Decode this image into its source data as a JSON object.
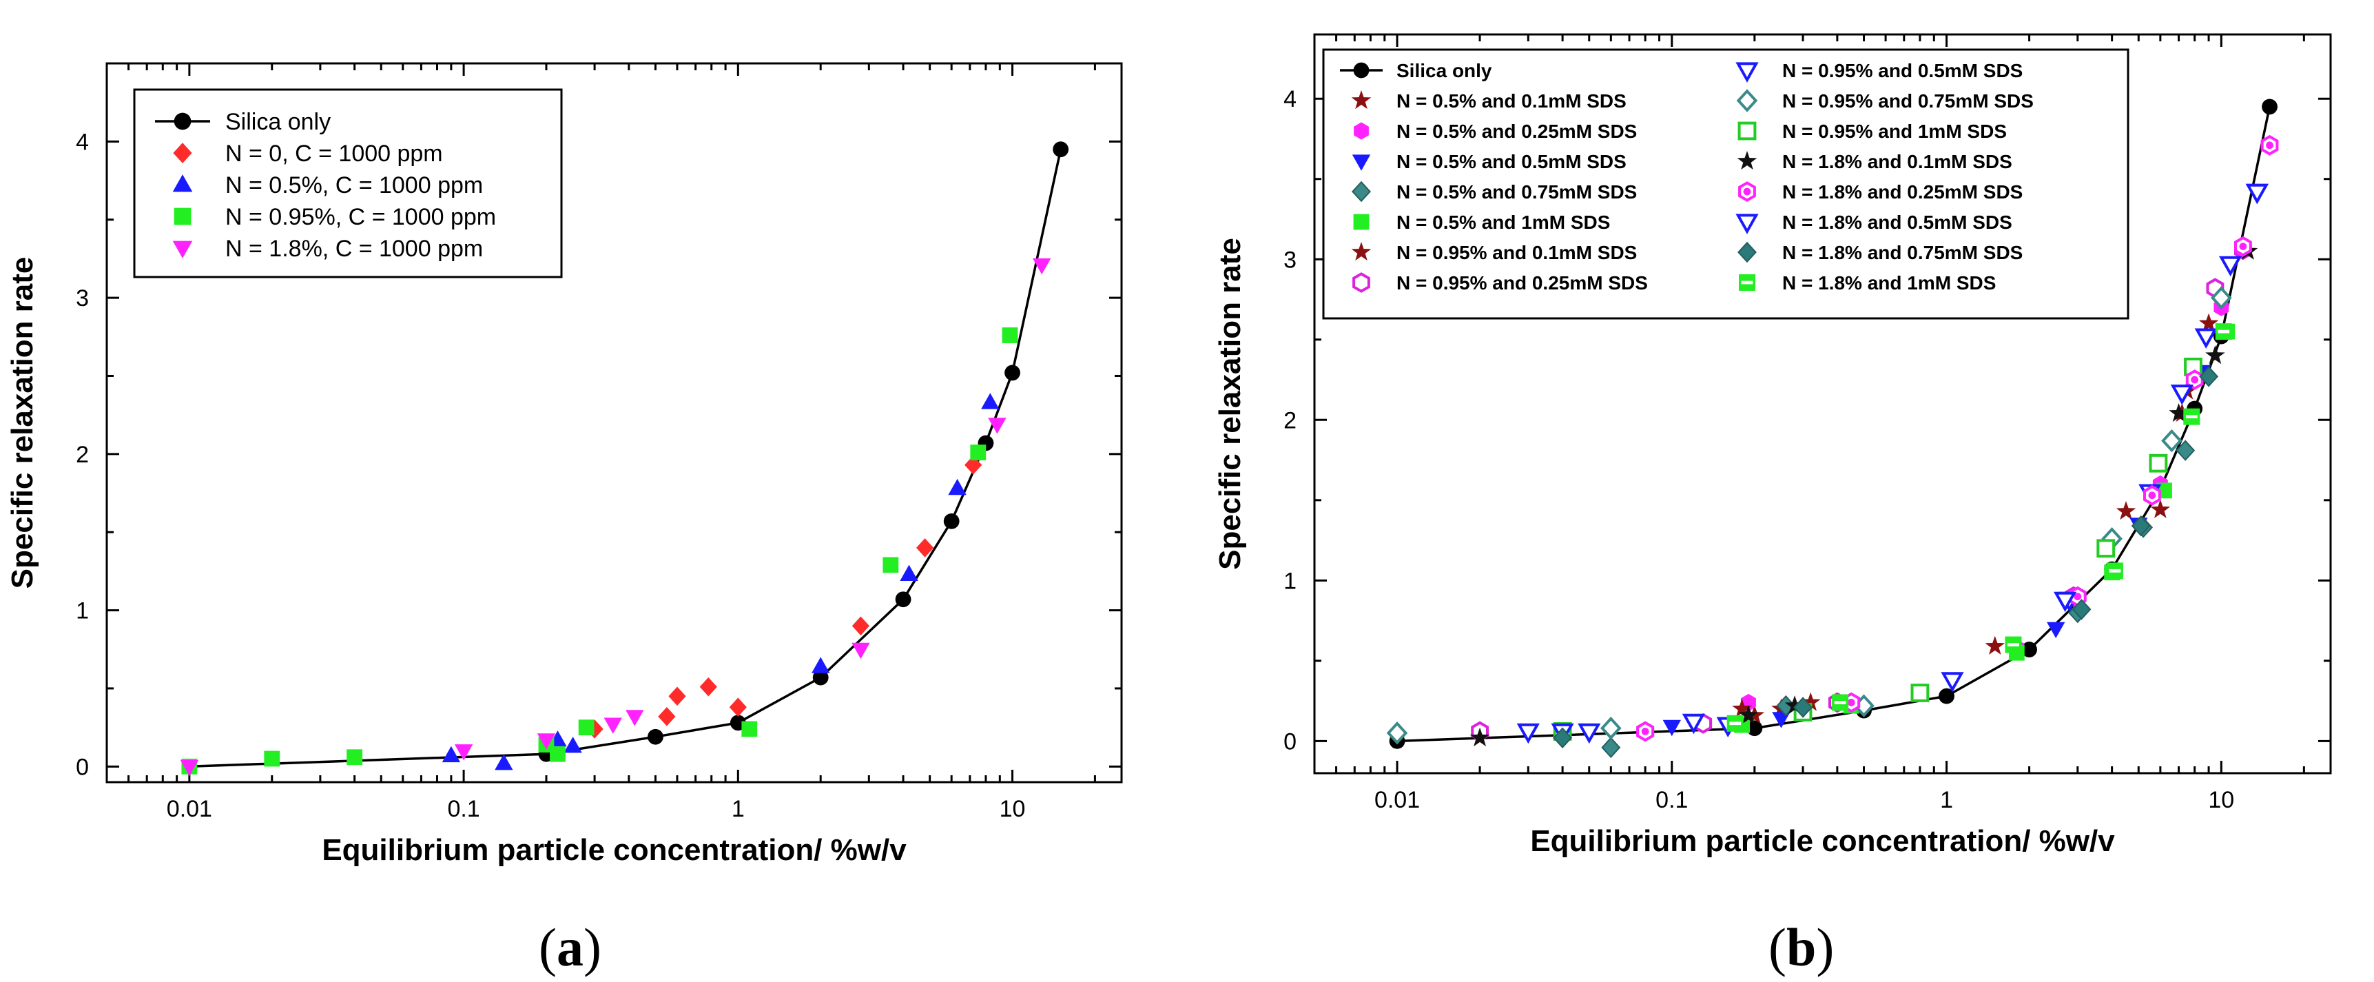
{
  "chart_data": [
    {
      "type": "scatter",
      "panel_label": "a",
      "xlabel": "Equilibrium particle concentration/ %w/v",
      "ylabel": "Specific relaxation rate",
      "xscale": "log",
      "xlim": [
        0.005,
        25
      ],
      "ylim": [
        -0.1,
        4.5
      ],
      "x_tick_labels": [
        "0.01",
        "0.1",
        "1",
        "10"
      ],
      "x_tick_values": [
        0.01,
        0.1,
        1,
        10
      ],
      "y_tick_labels": [
        "0",
        "1",
        "2",
        "3",
        "4"
      ],
      "y_tick_values": [
        0,
        1,
        2,
        3,
        4
      ],
      "legend_position": "top-left",
      "series": [
        {
          "name": "Silica only",
          "marker": "circle",
          "color": "#000000",
          "line": true,
          "x": [
            0.01,
            0.2,
            0.5,
            1,
            2,
            4,
            6,
            8,
            10,
            15
          ],
          "y": [
            0.0,
            0.08,
            0.19,
            0.28,
            0.57,
            1.07,
            1.57,
            2.07,
            2.52,
            3.95
          ]
        },
        {
          "name": "N = 0, C = 1000 ppm",
          "marker": "diamond",
          "color": "#ff2a2a",
          "x": [
            0.3,
            0.55,
            0.6,
            0.78,
            1.0,
            2.8,
            4.8,
            7.2
          ],
          "y": [
            0.24,
            0.32,
            0.45,
            0.51,
            0.38,
            0.9,
            1.4,
            1.93
          ]
        },
        {
          "name": "N = 0.5%, C = 1000 ppm",
          "marker": "triangle-up",
          "color": "#1a1aff",
          "x": [
            0.09,
            0.14,
            0.22,
            0.25,
            2.0,
            4.2,
            6.3,
            8.3
          ],
          "y": [
            0.07,
            0.02,
            0.17,
            0.13,
            0.64,
            1.23,
            1.78,
            2.33
          ]
        },
        {
          "name": "N = 0.95%, C = 1000 ppm",
          "marker": "square",
          "color": "#22ee22",
          "x": [
            0.01,
            0.02,
            0.04,
            0.2,
            0.22,
            0.28,
            1.1,
            3.6,
            7.5,
            9.8
          ],
          "y": [
            0.0,
            0.05,
            0.06,
            0.14,
            0.08,
            0.25,
            0.24,
            1.29,
            2.01,
            2.76
          ]
        },
        {
          "name": "N = 1.8%, C = 1000 ppm",
          "marker": "triangle-down",
          "color": "#ff22ff",
          "x": [
            0.01,
            0.1,
            0.2,
            0.35,
            0.42,
            2.8,
            8.8,
            12.8
          ],
          "y": [
            0.0,
            0.1,
            0.17,
            0.27,
            0.32,
            0.75,
            2.19,
            3.21
          ]
        }
      ]
    },
    {
      "type": "scatter",
      "panel_label": "b",
      "xlabel": "Equilibrium particle concentration/ %w/v",
      "ylabel": "Specific relaxation rate",
      "xscale": "log",
      "xlim": [
        0.005,
        25
      ],
      "ylim": [
        -0.2,
        4.4
      ],
      "x_tick_labels": [
        "0.01",
        "0.1",
        "1",
        "10"
      ],
      "x_tick_values": [
        0.01,
        0.1,
        1,
        10
      ],
      "y_tick_labels": [
        "0",
        "1",
        "2",
        "3",
        "4"
      ],
      "y_tick_values": [
        0,
        1,
        2,
        3,
        4
      ],
      "legend_position": "top-left",
      "series": [
        {
          "name": "Silica only",
          "marker": "circle",
          "color": "#000000",
          "line": true,
          "x": [
            0.01,
            0.2,
            0.5,
            1,
            2,
            4,
            6,
            8,
            10,
            15
          ],
          "y": [
            0.0,
            0.08,
            0.19,
            0.28,
            0.57,
            1.07,
            1.57,
            2.07,
            2.52,
            3.95
          ]
        },
        {
          "name": "N = 0.5% and 0.1mM SDS",
          "marker": "star",
          "color": "#8b1010",
          "x": [
            0.2,
            0.25,
            1.5,
            4.5,
            7.5,
            9.0
          ],
          "y": [
            0.16,
            0.2,
            0.59,
            1.43,
            2.18,
            2.6
          ]
        },
        {
          "name": "N = 0.5% and 0.25mM SDS",
          "marker": "hexagon",
          "color": "#ff22ff",
          "x": [
            0.19,
            0.45,
            1.8,
            3.0,
            6.0,
            10.0
          ],
          "y": [
            0.24,
            0.24,
            0.58,
            0.9,
            1.6,
            2.7
          ]
        },
        {
          "name": "N = 0.5% and 0.5mM SDS",
          "marker": "triangle-down",
          "color": "#1a1aff",
          "x": [
            0.1,
            0.25,
            2.5,
            5.0,
            8.5
          ],
          "y": [
            0.09,
            0.14,
            0.7,
            1.35,
            2.3
          ]
        },
        {
          "name": "N = 0.5% and 0.75mM SDS",
          "marker": "diamond",
          "color": "#3a8a8a",
          "x": [
            0.06,
            0.26,
            3.0,
            5.2,
            7.4
          ],
          "y": [
            -0.04,
            0.22,
            0.8,
            1.33,
            1.81
          ]
        },
        {
          "name": "N = 0.5% and 1mM SDS",
          "marker": "square",
          "color": "#22ee22",
          "x": [
            0.18,
            0.45,
            1.8,
            4.0,
            6.2,
            10.5
          ],
          "y": [
            0.1,
            0.22,
            0.55,
            1.05,
            1.56,
            2.55
          ]
        },
        {
          "name": "N = 0.95% and 0.1mM SDS",
          "marker": "star",
          "color": "#8b1010",
          "x": [
            0.02,
            0.18,
            0.32,
            6.0,
            7.2,
            12.5
          ],
          "y": [
            0.02,
            0.2,
            0.24,
            1.44,
            2.04,
            3.05
          ]
        },
        {
          "name": "N = 0.95% and 0.25mM SDS",
          "marker": "hexagon-open",
          "color": "#dd22dd",
          "x": [
            0.02,
            0.08,
            0.13,
            0.4,
            2.9,
            9.5,
            12.0
          ],
          "y": [
            0.06,
            0.06,
            0.11,
            0.24,
            0.9,
            2.82,
            3.06
          ]
        },
        {
          "name": "N = 0.95% and 0.5mM SDS",
          "marker": "triangle-down-open",
          "color": "#1a1aff",
          "x": [
            0.03,
            0.05,
            0.12,
            1.05,
            2.8,
            5.5,
            10.8,
            13.5
          ],
          "y": [
            0.06,
            0.06,
            0.12,
            0.38,
            0.88,
            1.55,
            2.97,
            3.42
          ]
        },
        {
          "name": "N = 0.95% and 0.75mM SDS",
          "marker": "diamond-open",
          "color": "#3a8a8a",
          "x": [
            0.01,
            0.06,
            0.5,
            4.0,
            6.6,
            10.0
          ],
          "y": [
            0.05,
            0.08,
            0.22,
            1.26,
            1.87,
            2.76
          ]
        },
        {
          "name": "N = 0.95% and 1mM SDS",
          "marker": "square-open",
          "color": "#22cc22",
          "x": [
            0.04,
            0.3,
            0.8,
            3.8,
            5.9,
            7.9
          ],
          "y": [
            0.06,
            0.18,
            0.3,
            1.2,
            1.73,
            2.33
          ]
        },
        {
          "name": "N = 1.8% and 0.1mM SDS",
          "marker": "star",
          "color": "#111111",
          "x": [
            0.02,
            0.19,
            0.28,
            7.0,
            9.5,
            12.5
          ],
          "y": [
            0.02,
            0.16,
            0.22,
            2.04,
            2.4,
            3.05
          ]
        },
        {
          "name": "N = 1.8% and 0.25mM SDS",
          "marker": "hexagon-dot",
          "color": "#ff22ff",
          "x": [
            0.08,
            0.45,
            3.0,
            5.6,
            8.0,
            12.0,
            15.0
          ],
          "y": [
            0.06,
            0.24,
            0.9,
            1.53,
            2.25,
            3.08,
            3.71
          ]
        },
        {
          "name": "N = 1.8% and 0.5mM SDS",
          "marker": "triangle-down-open",
          "color": "#1a1aff",
          "x": [
            0.04,
            0.16,
            2.7,
            7.2,
            8.8,
            13.5
          ],
          "y": [
            0.06,
            0.1,
            0.88,
            2.17,
            2.52,
            3.42
          ]
        },
        {
          "name": "N = 1.8% and 0.75mM SDS",
          "marker": "diamond",
          "color": "#2a7a7a",
          "x": [
            0.04,
            0.3,
            3.1,
            5.1,
            9.0
          ],
          "y": [
            0.02,
            0.21,
            0.82,
            1.34,
            2.27
          ]
        },
        {
          "name": "N = 1.8% and 1mM SDS",
          "marker": "square-half",
          "color": "#22ee22",
          "x": [
            0.17,
            0.41,
            1.75,
            4.1,
            7.8,
            10.2
          ],
          "y": [
            0.11,
            0.24,
            0.6,
            1.06,
            2.02,
            2.55
          ]
        }
      ]
    }
  ]
}
